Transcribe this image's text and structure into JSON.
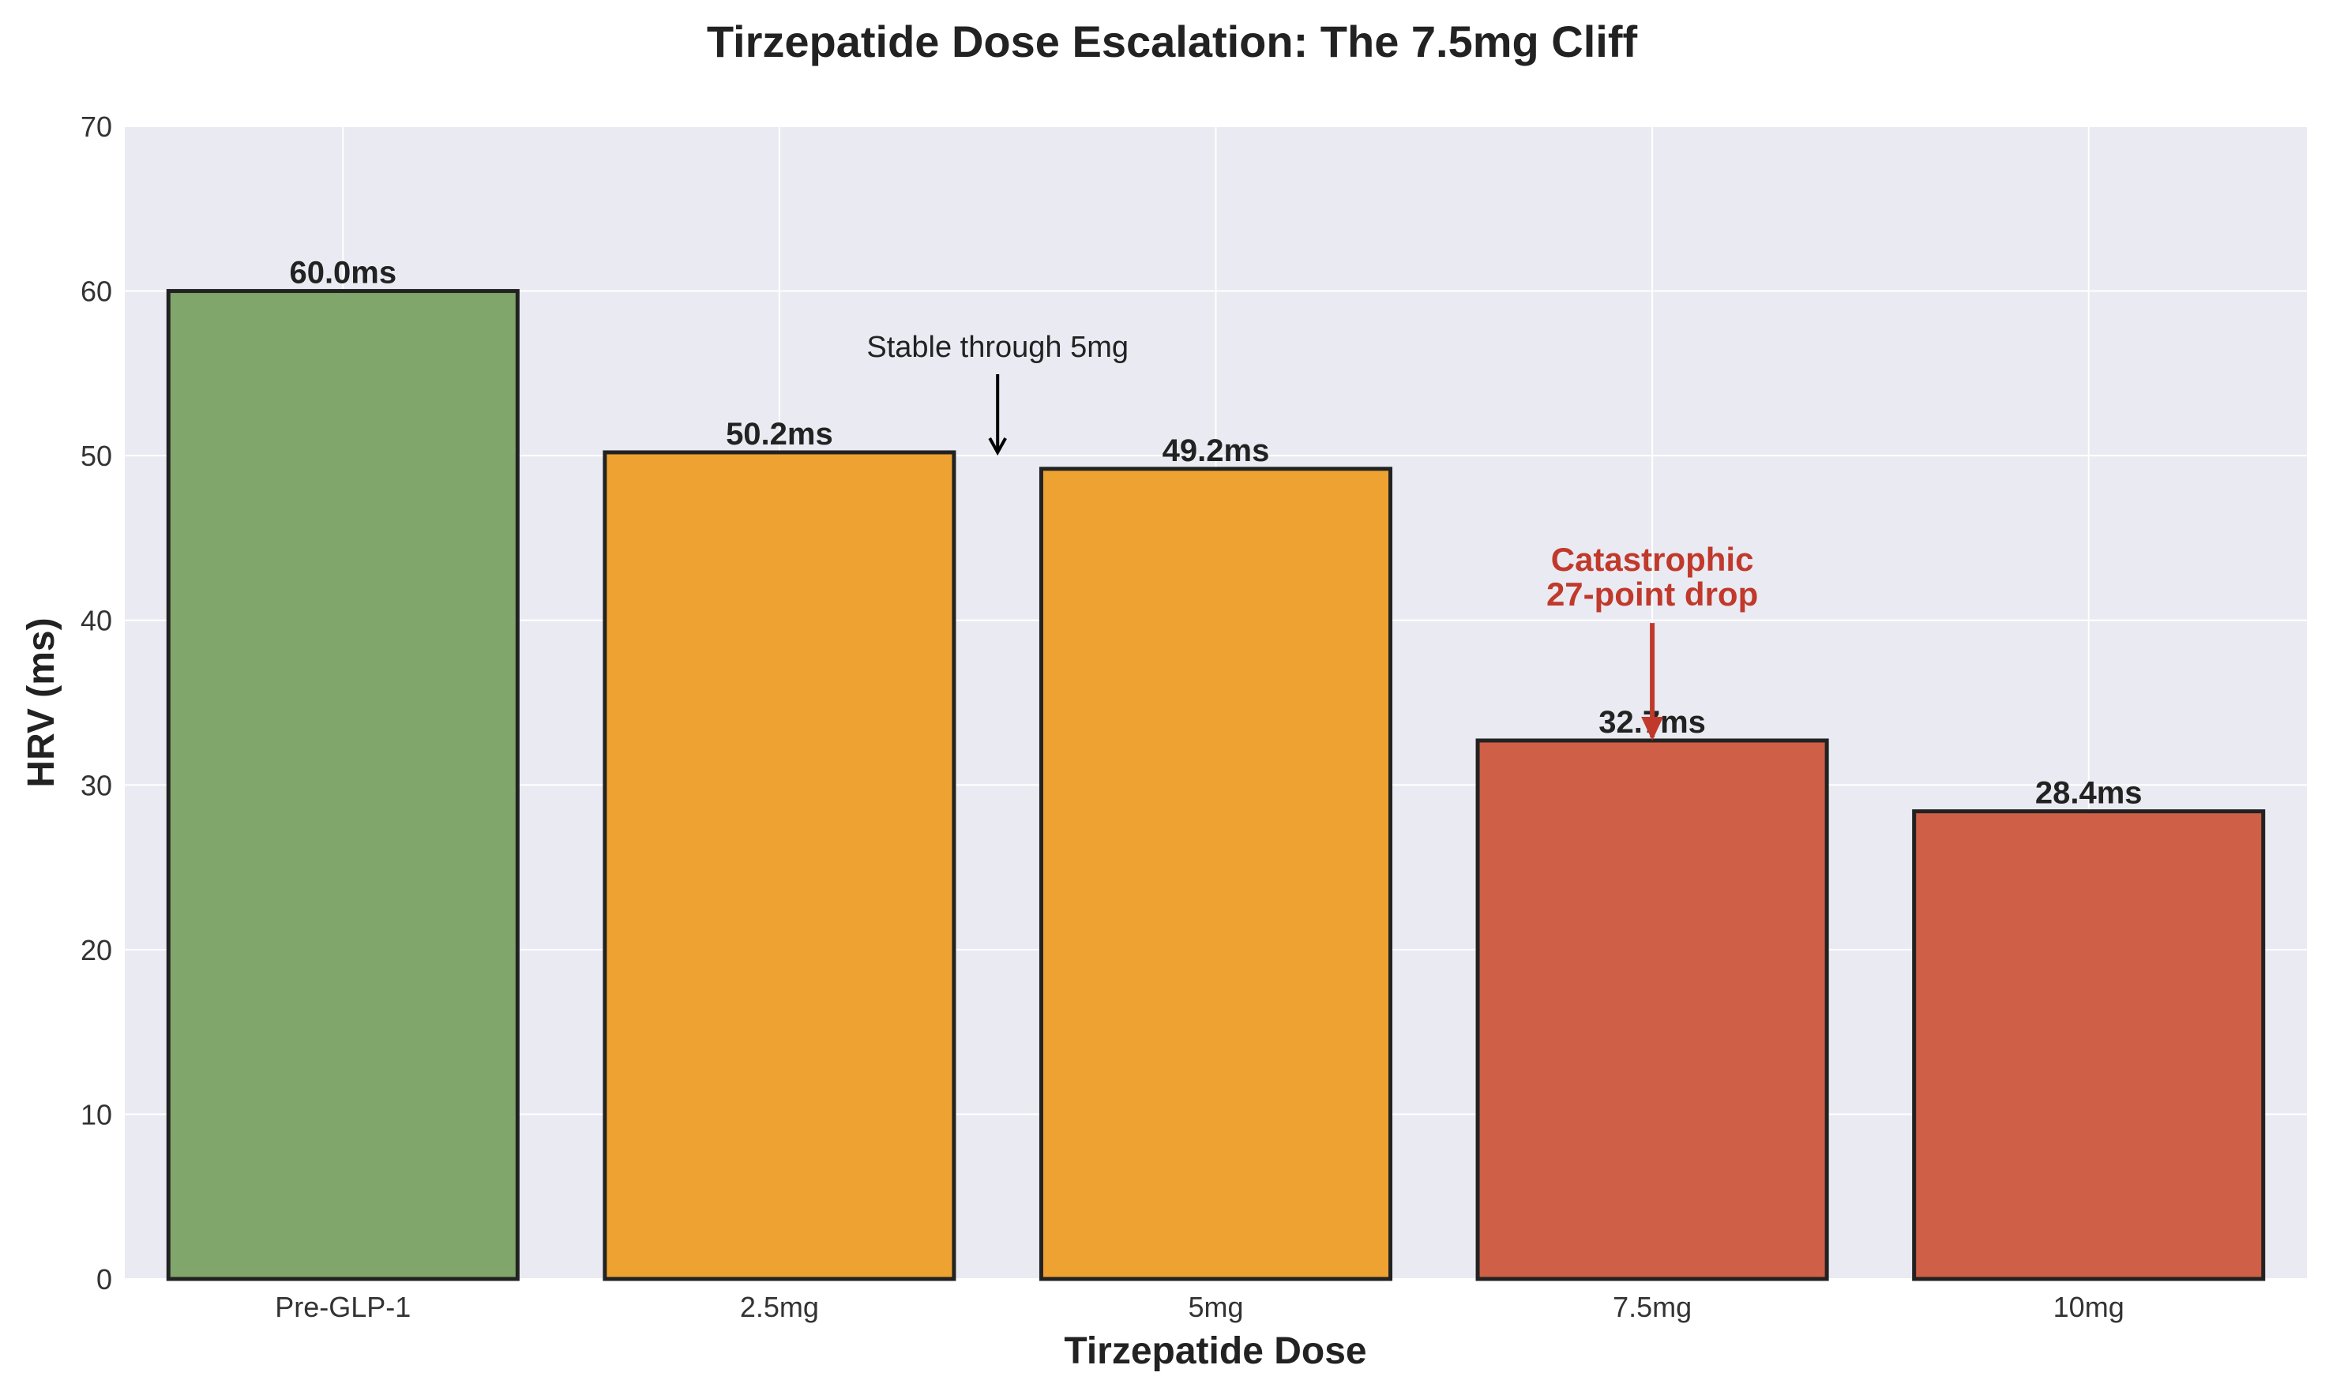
{
  "chart_data": {
    "type": "bar",
    "title": "Tirzepatide Dose Escalation: The 7.5mg Cliff",
    "xlabel": "Tirzepatide Dose",
    "ylabel": "HRV (ms)",
    "categories": [
      "Pre-GLP-1",
      "2.5mg",
      "5mg",
      "7.5mg",
      "10mg"
    ],
    "values": [
      60.0,
      50.2,
      49.2,
      32.7,
      28.4
    ],
    "data_labels": [
      "60.0ms",
      "50.2ms",
      "49.2ms",
      "32.7ms",
      "28.4ms"
    ],
    "bar_colors": [
      "#80a66b",
      "#eea232",
      "#eea232",
      "#cf5f46",
      "#cf5f46"
    ],
    "ylim": [
      0,
      70
    ],
    "yticks": [
      0,
      10,
      20,
      30,
      40,
      50,
      60,
      70
    ],
    "grid": true,
    "annotations": [
      {
        "lines": [
          "Stable through 5mg"
        ],
        "arrow_tip": [
          1.5,
          50.2
        ],
        "text_at": [
          1.5,
          56
        ],
        "color": "#000000"
      },
      {
        "lines": [
          "Catastrophic",
          "27-point drop"
        ],
        "arrow_tip": [
          3,
          32.7
        ],
        "text_at": [
          3,
          43
        ],
        "color": "#c0392b"
      }
    ]
  }
}
